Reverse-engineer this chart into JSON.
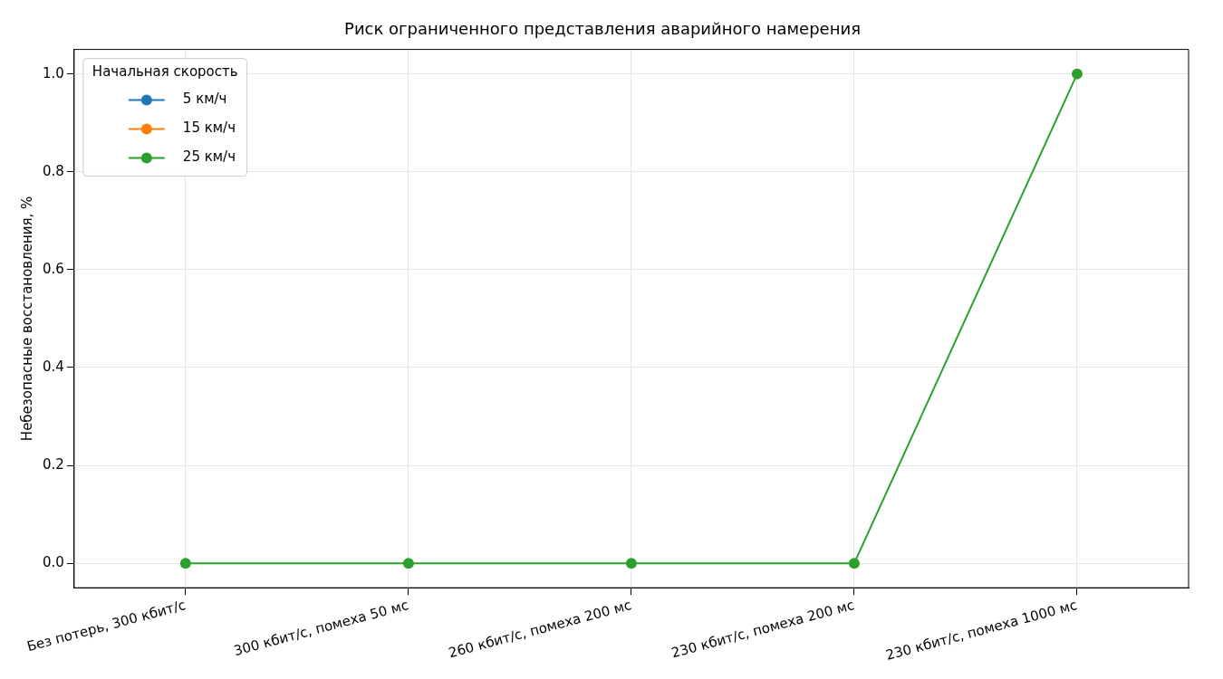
{
  "chart_data": {
    "type": "line",
    "title": "Риск ограниченного представления аварийного намерения",
    "ylabel": "Небезопасные восстановления, %",
    "legend_title": "Начальная скорость",
    "categories": [
      "Без потерь, 300 кбит/с",
      "300 кбит/с, помеха 50 мс",
      "260 кбит/с, помеха 200 мс",
      "230 кбит/с, помеха 200 мс",
      "230 кбит/с, помеха 1000 мс"
    ],
    "series": [
      {
        "name": "5 км/ч",
        "color": "#1f77b4",
        "values": [
          null,
          null,
          null,
          null,
          null
        ]
      },
      {
        "name": "15 км/ч",
        "color": "#ff7f0e",
        "values": [
          null,
          null,
          null,
          null,
          null
        ]
      },
      {
        "name": "25 км/ч",
        "color": "#2ca02c",
        "values": [
          0,
          0,
          0,
          0,
          1
        ]
      }
    ],
    "ylim": [
      -0.05,
      1.05
    ],
    "yticks": [
      {
        "value": 0,
        "label": "0.0"
      },
      {
        "value": 0.2,
        "label": "0.2"
      },
      {
        "value": 0.4,
        "label": "0.4"
      },
      {
        "value": 0.6,
        "label": "0.6"
      },
      {
        "value": 0.8,
        "label": "0.8"
      },
      {
        "value": 1,
        "label": "1.0"
      }
    ],
    "grid": true,
    "legend": "top left",
    "marker": "circle",
    "line_style": "solid"
  }
}
